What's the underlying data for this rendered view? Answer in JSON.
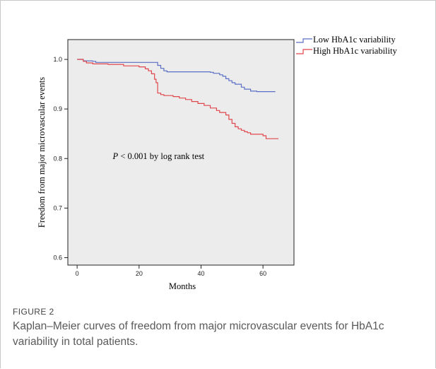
{
  "figure": {
    "label": "FIGURE 2",
    "caption": "Kaplan–Meier curves of freedom from major microvascular events for HbA1c variability in total patients."
  },
  "colors": {
    "low": "#5b6fc4",
    "high": "#e0474c",
    "plot_bg": "#ececec"
  },
  "chart_data": {
    "type": "line",
    "title": "",
    "xlabel": "Months",
    "ylabel": "Freedom from major microvascular events",
    "xlim": [
      -3,
      70
    ],
    "ylim": [
      0.585,
      1.04
    ],
    "xticks": [
      0,
      20,
      40,
      60
    ],
    "xtick_labels": [
      "0",
      "20",
      "40",
      "60"
    ],
    "yticks": [
      0.6,
      0.7,
      0.8,
      0.9,
      1.0
    ],
    "ytick_labels": [
      "0.6",
      "0.7",
      "0.8",
      "0.9",
      "1.0"
    ],
    "annotation": {
      "italic": "P",
      "text": " < 0.001 by log rank test",
      "x": 11.5,
      "y": 0.805
    },
    "legend_position": "outside-top-right",
    "series": [
      {
        "name": "Low HbA1c variability",
        "steps": [
          [
            0,
            1.0
          ],
          [
            2,
            0.997
          ],
          [
            5,
            0.996
          ],
          [
            6,
            0.994
          ],
          [
            25,
            0.994
          ],
          [
            26,
            0.988
          ],
          [
            27,
            0.982
          ],
          [
            28,
            0.977
          ],
          [
            29,
            0.975
          ],
          [
            43,
            0.974
          ],
          [
            44,
            0.972
          ],
          [
            46,
            0.969
          ],
          [
            47,
            0.966
          ],
          [
            48,
            0.961
          ],
          [
            49,
            0.957
          ],
          [
            50,
            0.953
          ],
          [
            51,
            0.95
          ],
          [
            53,
            0.944
          ],
          [
            54,
            0.94
          ],
          [
            56,
            0.936
          ],
          [
            58,
            0.935
          ],
          [
            64,
            0.935
          ]
        ]
      },
      {
        "name": "High HbA1c variability",
        "steps": [
          [
            0,
            1.0
          ],
          [
            2,
            0.996
          ],
          [
            3,
            0.993
          ],
          [
            5,
            0.991
          ],
          [
            10,
            0.99
          ],
          [
            15,
            0.987
          ],
          [
            20,
            0.985
          ],
          [
            22,
            0.981
          ],
          [
            23,
            0.977
          ],
          [
            24,
            0.971
          ],
          [
            25,
            0.96
          ],
          [
            25.5,
            0.953
          ],
          [
            26,
            0.932
          ],
          [
            27,
            0.929
          ],
          [
            28,
            0.927
          ],
          [
            31,
            0.925
          ],
          [
            33,
            0.922
          ],
          [
            35,
            0.919
          ],
          [
            37,
            0.915
          ],
          [
            39,
            0.911
          ],
          [
            41,
            0.907
          ],
          [
            43,
            0.902
          ],
          [
            45,
            0.897
          ],
          [
            46,
            0.893
          ],
          [
            48,
            0.888
          ],
          [
            49,
            0.879
          ],
          [
            50,
            0.871
          ],
          [
            51,
            0.864
          ],
          [
            52,
            0.86
          ],
          [
            53,
            0.857
          ],
          [
            54,
            0.854
          ],
          [
            55,
            0.852
          ],
          [
            56,
            0.849
          ],
          [
            60,
            0.846
          ],
          [
            61,
            0.84
          ],
          [
            65,
            0.84
          ]
        ]
      }
    ]
  }
}
